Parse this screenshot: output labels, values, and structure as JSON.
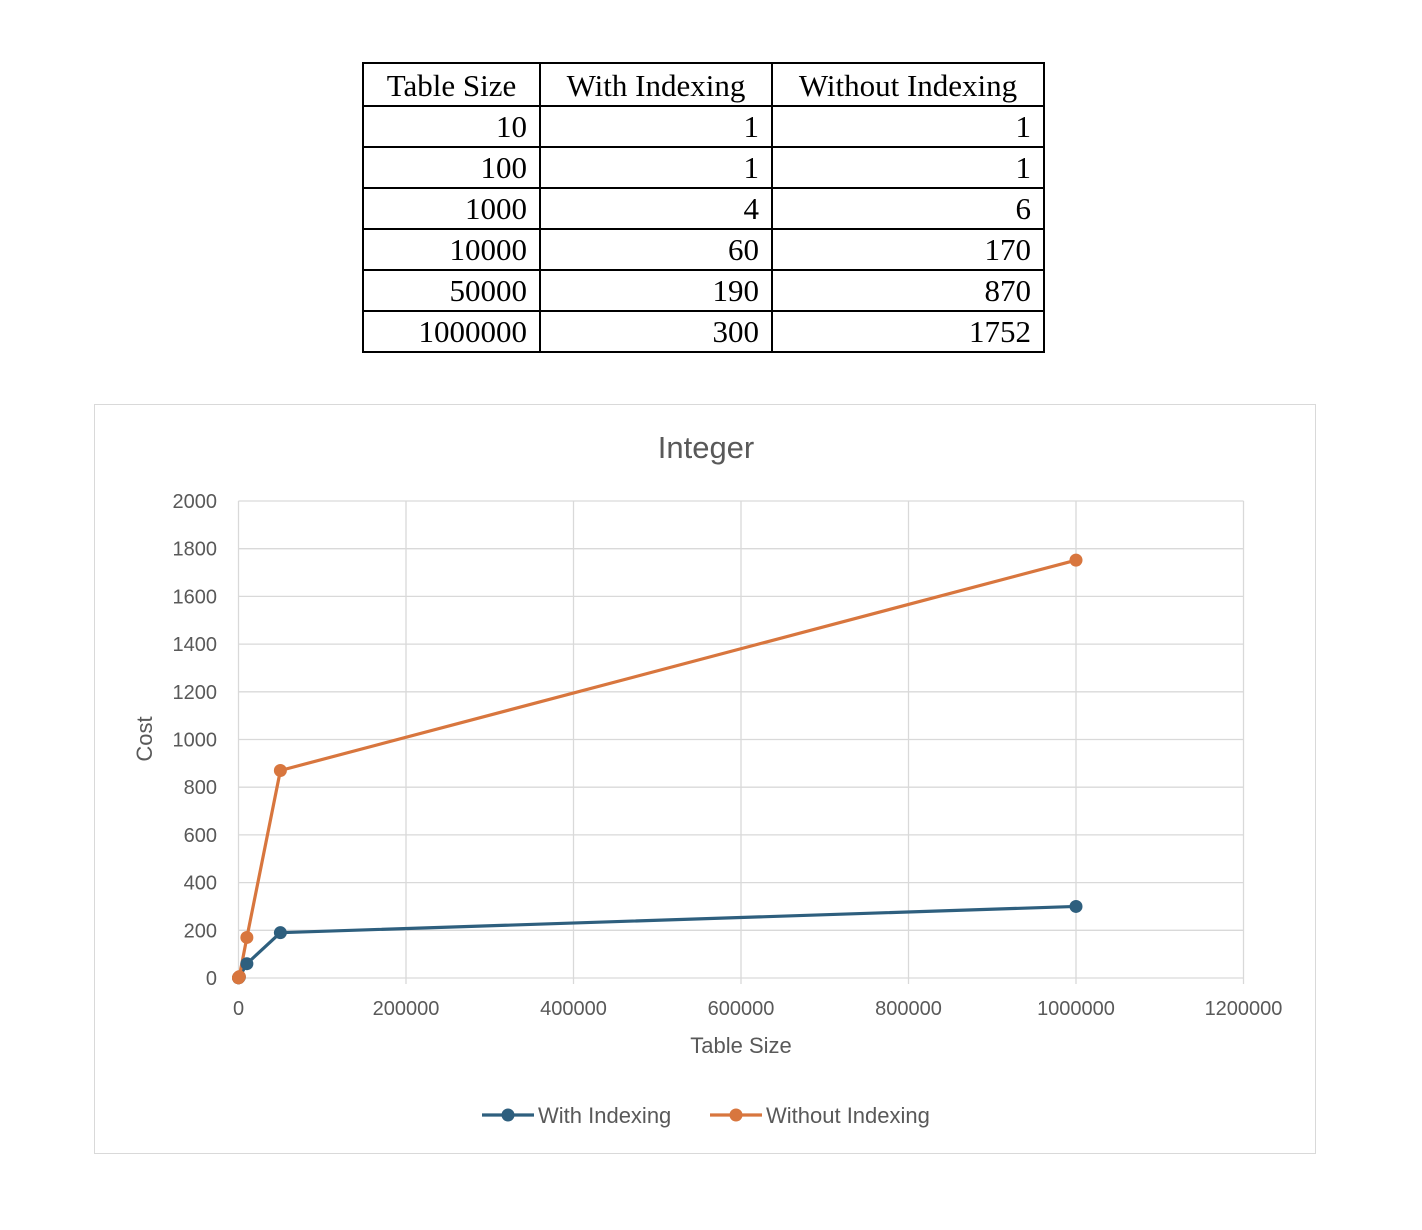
{
  "table": {
    "headers": [
      "Table Size",
      "With Indexing",
      "Without Indexing"
    ],
    "rows": [
      [
        "10",
        "1",
        "1"
      ],
      [
        "100",
        "1",
        "1"
      ],
      [
        "1000",
        "4",
        "6"
      ],
      [
        "10000",
        "60",
        "170"
      ],
      [
        "50000",
        "190",
        "870"
      ],
      [
        "1000000",
        "300",
        "1752"
      ]
    ]
  },
  "chart_data": {
    "type": "line",
    "title": "Integer",
    "xlabel": "Table Size",
    "ylabel": "Cost",
    "x": [
      10,
      100,
      1000,
      10000,
      50000,
      1000000
    ],
    "xlim": [
      0,
      1200000
    ],
    "ylim": [
      0,
      2000
    ],
    "xticks": [
      0,
      200000,
      400000,
      600000,
      800000,
      1000000,
      1200000
    ],
    "yticks": [
      0,
      200,
      400,
      600,
      800,
      1000,
      1200,
      1400,
      1600,
      1800,
      2000
    ],
    "grid": true,
    "legend_position": "bottom",
    "series": [
      {
        "name": "With Indexing",
        "values": [
          1,
          1,
          4,
          60,
          190,
          300
        ],
        "color": "#2e5f7e"
      },
      {
        "name": "Without Indexing",
        "values": [
          1,
          1,
          6,
          170,
          870,
          1752
        ],
        "color": "#d8763e"
      }
    ]
  },
  "colors": {
    "grid": "#d9d9d9",
    "text": "#595959"
  }
}
